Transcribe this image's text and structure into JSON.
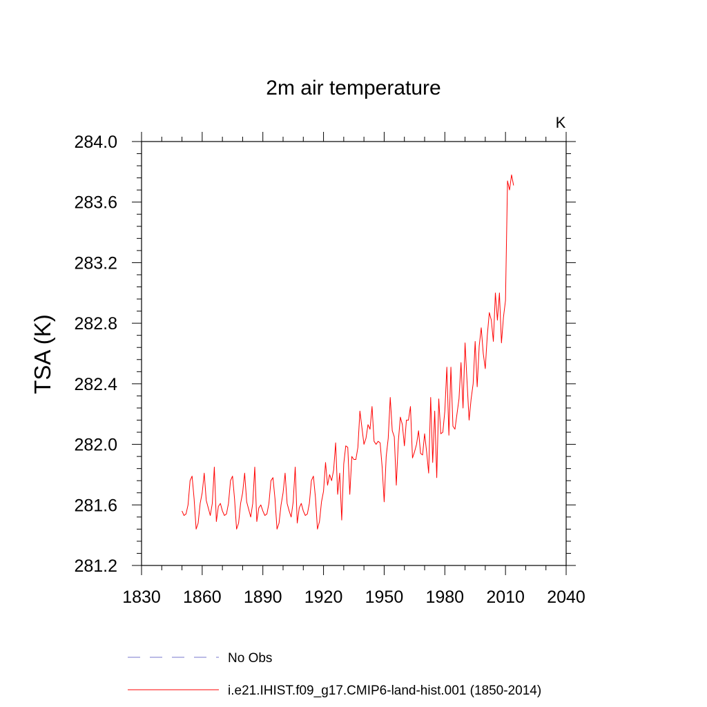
{
  "chart_data": {
    "type": "line",
    "title": "2m air temperature",
    "ylabel": "TSA  (K)",
    "xlabel": "",
    "units_label": "K",
    "xlim": [
      1830,
      2040
    ],
    "ylim": [
      281.2,
      284.0
    ],
    "x_ticks": [
      1830,
      1860,
      1890,
      1920,
      1950,
      1980,
      2010,
      2040
    ],
    "x_tick_labels": [
      "1830",
      "1860",
      "1890",
      "1920",
      "1950",
      "1980",
      "2010",
      "2040"
    ],
    "y_ticks": [
      281.2,
      281.6,
      282.0,
      282.4,
      282.8,
      283.2,
      283.6,
      284.0
    ],
    "y_tick_labels": [
      "281.2",
      "281.6",
      "282.0",
      "282.4",
      "282.8",
      "283.2",
      "283.6",
      "284.0"
    ],
    "grid": false,
    "legend_position": "bottom",
    "series": [
      {
        "name": "No Obs",
        "color": "#7777cc",
        "style": "dashed",
        "x": [],
        "y": []
      },
      {
        "name": "i.e21.IHIST.f09_g17.CMIP6-land-hist.001 (1850-2014)",
        "color": "#ff0000",
        "style": "solid",
        "x_start": 1850,
        "x_step": 1,
        "y": [
          281.56,
          281.53,
          281.54,
          281.6,
          281.76,
          281.79,
          281.64,
          281.44,
          281.48,
          281.61,
          281.68,
          281.81,
          281.63,
          281.58,
          281.53,
          281.61,
          281.85,
          281.49,
          281.59,
          281.61,
          281.56,
          281.53,
          281.54,
          281.61,
          281.76,
          281.79,
          281.64,
          281.44,
          281.48,
          281.61,
          281.68,
          281.81,
          281.62,
          281.57,
          281.52,
          281.61,
          281.85,
          281.49,
          281.58,
          281.6,
          281.56,
          281.53,
          281.54,
          281.61,
          281.76,
          281.78,
          281.64,
          281.44,
          281.48,
          281.6,
          281.68,
          281.81,
          281.61,
          281.56,
          281.52,
          281.62,
          281.85,
          281.48,
          281.58,
          281.61,
          281.56,
          281.53,
          281.54,
          281.61,
          281.76,
          281.79,
          281.65,
          281.44,
          281.49,
          281.62,
          281.69,
          281.88,
          281.73,
          281.8,
          281.76,
          281.83,
          282.01,
          281.67,
          281.81,
          281.5,
          281.87,
          281.99,
          281.98,
          281.67,
          281.92,
          281.9,
          281.9,
          281.98,
          282.22,
          282.11,
          282.0,
          282.04,
          282.13,
          282.1,
          282.25,
          282.02,
          282.0,
          282.02,
          282.01,
          281.85,
          281.62,
          281.92,
          282.04,
          282.31,
          282.09,
          282.05,
          281.73,
          282.02,
          282.18,
          282.13,
          281.99,
          282.16,
          282.16,
          282.25,
          281.91,
          281.95,
          282.0,
          282.09,
          281.94,
          281.93,
          282.07,
          281.95,
          281.81,
          282.31,
          281.88,
          282.22,
          281.78,
          282.3,
          282.07,
          282.08,
          282.22,
          282.51,
          282.06,
          282.51,
          282.12,
          282.1,
          282.2,
          282.3,
          282.54,
          282.24,
          282.67,
          282.41,
          282.16,
          282.3,
          282.4,
          282.68,
          282.38,
          282.65,
          282.77,
          282.6,
          282.5,
          282.72,
          282.87,
          282.82,
          282.68,
          283.0,
          282.82,
          283.0,
          282.67,
          282.84,
          282.95,
          283.74,
          283.68,
          283.78,
          283.71
        ]
      }
    ]
  }
}
